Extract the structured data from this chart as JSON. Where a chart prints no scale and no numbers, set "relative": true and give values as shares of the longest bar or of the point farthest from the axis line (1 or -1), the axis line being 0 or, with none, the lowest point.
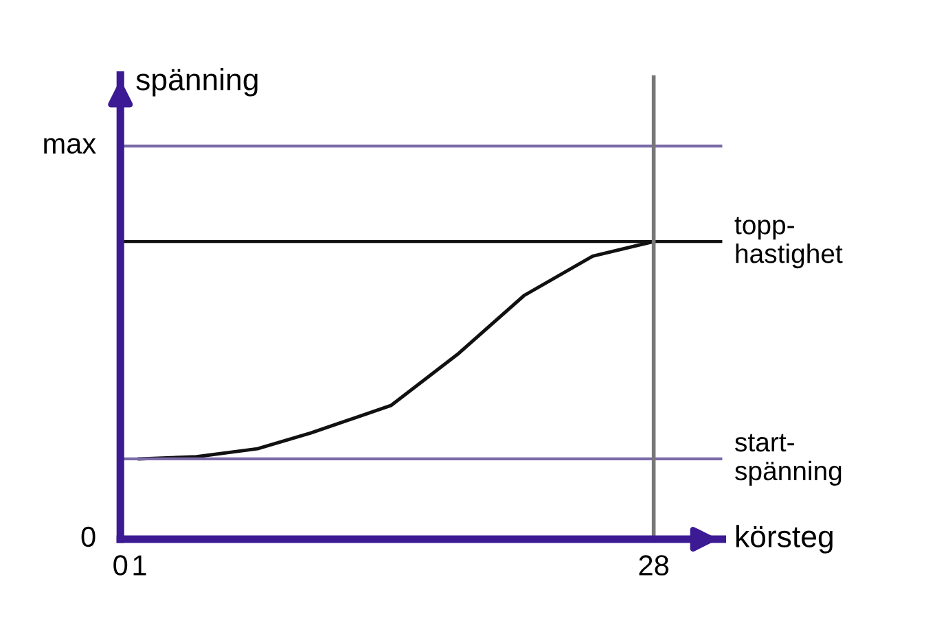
{
  "chart_data": {
    "type": "line",
    "xlabel": "körsteg",
    "ylabel": "spänning",
    "relative": true,
    "x": [
      1,
      4,
      7.2,
      10,
      14.2,
      17.7,
      21.2,
      24.8,
      28
    ],
    "series": [
      {
        "color": "#111111",
        "values": [
          0.27,
          0.277,
          0.304,
          0.357,
          0.449,
          0.621,
          0.819,
          0.951,
          1
        ]
      }
    ],
    "xlim": [
      0,
      31.6
    ],
    "xticks": [
      0,
      1,
      28
    ],
    "annotations": [
      "max",
      "0"
    ],
    "ref_lines": [
      {
        "axis": "y",
        "value": 1.321,
        "label": null,
        "color": "#7b6aa8"
      },
      {
        "axis": "y",
        "value": 1,
        "label": "topp-\nhastighet",
        "color": "#111111"
      },
      {
        "axis": "y",
        "value": 0.27,
        "label": "start-\nspänning",
        "color": "#7b6aa8"
      },
      {
        "axis": "x",
        "value": 28,
        "label": null,
        "color": "#777777"
      }
    ],
    "grid": false,
    "legend": false,
    "marker": "none",
    "line_style": "solid"
  }
}
